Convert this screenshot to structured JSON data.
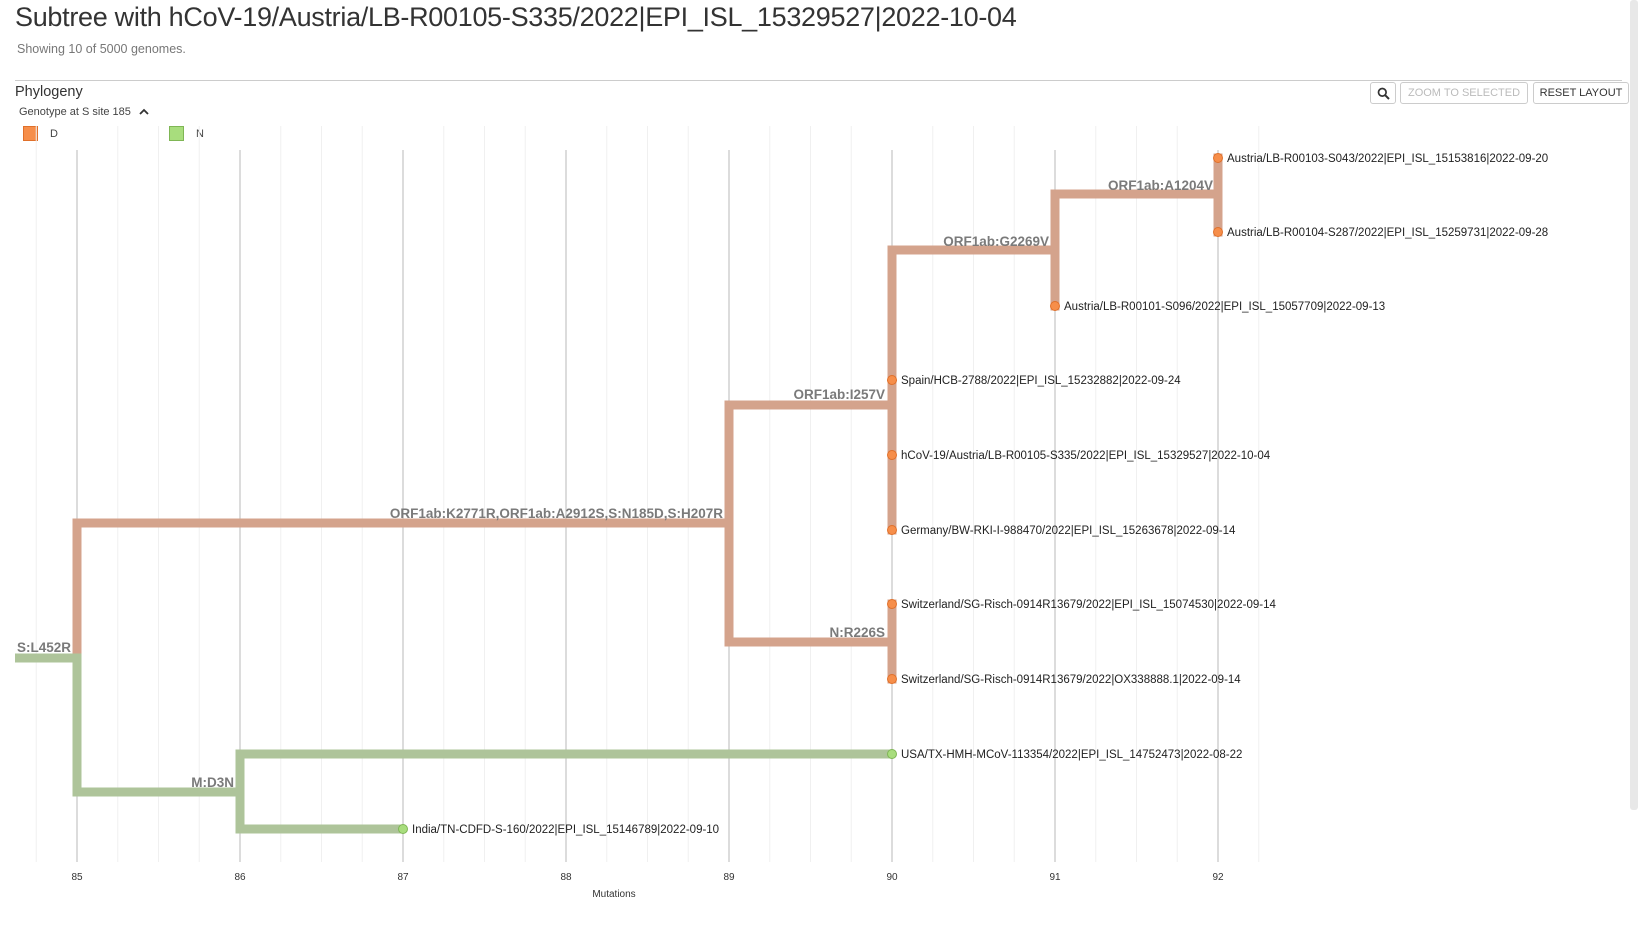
{
  "header": {
    "title": "Subtree with hCoV-19/Austria/LB-R00105-S335/2022|EPI_ISL_15329527|2022-10-04",
    "subtitle": "Showing 10 of 5000 genomes."
  },
  "panel": {
    "title": "Phylogeny",
    "zoom_to_selected": "ZOOM TO SELECTED",
    "reset_layout": "RESET LAYOUT",
    "search_icon": "search-icon"
  },
  "legend": {
    "title": "Genotype at S site 185",
    "collapse_icon": "chevron-up-icon",
    "items": [
      {
        "label": "D",
        "color": "#f68e4a"
      },
      {
        "label": "N",
        "color": "#a8dd7d"
      }
    ]
  },
  "colors": {
    "branch_D": "#d4a38c",
    "branch_N": "#aec49a",
    "tip_D": "#f68e4a",
    "tip_N": "#a8dd7d",
    "grid_major": "#dcdcdc",
    "grid_minor": "#f0f0f0"
  },
  "chart_data": {
    "type": "tree",
    "xlabel": "Mutations",
    "xlim": [
      84.5,
      92.5
    ],
    "ticks": [
      85,
      86,
      87,
      88,
      89,
      90,
      91,
      92
    ],
    "tick_labels": [
      "85",
      "86",
      "87",
      "88",
      "89",
      "90",
      "91",
      "92"
    ],
    "tips": [
      {
        "name": "Austria/LB-R00103-S043/2022|EPI_ISL_15153816|2022-09-20",
        "mutations": 92,
        "genotype": "D"
      },
      {
        "name": "Austria/LB-R00104-S287/2022|EPI_ISL_15259731|2022-09-28",
        "mutations": 92,
        "genotype": "D"
      },
      {
        "name": "Austria/LB-R00101-S096/2022|EPI_ISL_15057709|2022-09-13",
        "mutations": 91,
        "genotype": "D"
      },
      {
        "name": "Spain/HCB-2788/2022|EPI_ISL_15232882|2022-09-24",
        "mutations": 90,
        "genotype": "D"
      },
      {
        "name": "hCoV-19/Austria/LB-R00105-S335/2022|EPI_ISL_15329527|2022-10-04",
        "mutations": 90,
        "genotype": "D"
      },
      {
        "name": "Germany/BW-RKI-I-988470/2022|EPI_ISL_15263678|2022-09-14",
        "mutations": 90,
        "genotype": "D"
      },
      {
        "name": "Switzerland/SG-Risch-0914R13679/2022|EPI_ISL_15074530|2022-09-14",
        "mutations": 90,
        "genotype": "D"
      },
      {
        "name": "Switzerland/SG-Risch-0914R13679/2022|OX338888.1|2022-09-14",
        "mutations": 90,
        "genotype": "D"
      },
      {
        "name": "USA/TX-HMH-MCoV-113354/2022|EPI_ISL_14752473|2022-08-22",
        "mutations": 90,
        "genotype": "N"
      },
      {
        "name": "India/TN-CDFD-S-160/2022|EPI_ISL_15146789|2022-09-10",
        "mutations": 87,
        "genotype": "N"
      }
    ],
    "branch_labels": [
      {
        "label": "S:L452R",
        "at_mutations": 85
      },
      {
        "label": "ORF1ab:K2771R,ORF1ab:A2912S,S:N185D,S:H207R",
        "at_mutations": 89
      },
      {
        "label": "ORF1ab:I257V",
        "at_mutations": 90
      },
      {
        "label": "ORF1ab:G2269V",
        "at_mutations": 91
      },
      {
        "label": "ORF1ab:A1204V",
        "at_mutations": 92
      },
      {
        "label": "N:R226S",
        "at_mutations": 90
      },
      {
        "label": "M:D3N",
        "at_mutations": 86
      }
    ]
  }
}
